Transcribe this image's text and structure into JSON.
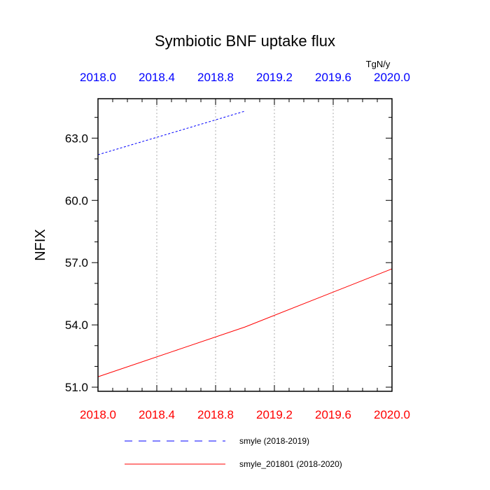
{
  "chart_data": {
    "type": "line",
    "title": "Symbiotic BNF uptake flux",
    "units": "TgN/y",
    "ylabel": "NFIX",
    "ylim": [
      50.8,
      64.9
    ],
    "yticks": [
      "51.0",
      "54.0",
      "57.0",
      "60.0",
      "63.0"
    ],
    "ytick_values": [
      51.0,
      54.0,
      57.0,
      60.0,
      63.0
    ],
    "ygrid": false,
    "xgrid": true,
    "top_axis": {
      "range": [
        2018.0,
        2020.0
      ],
      "ticks": [
        "2018.0",
        "2018.4",
        "2018.8",
        "2019.2",
        "2019.6",
        "2020.0"
      ],
      "tick_values": [
        2018.0,
        2018.4,
        2018.8,
        2019.2,
        2019.6,
        2020.0
      ],
      "color": "#0000ff"
    },
    "bottom_axis": {
      "range": [
        2018.0,
        2020.0
      ],
      "ticks": [
        "2018.0",
        "2018.4",
        "2018.8",
        "2019.2",
        "2019.6",
        "2020.0"
      ],
      "tick_values": [
        2018.0,
        2018.4,
        2018.8,
        2019.2,
        2019.6,
        2020.0
      ],
      "color": "#ff0000"
    },
    "legend_position": "bottom",
    "series": [
      {
        "name": "smyle (2018-2019)",
        "color": "#0000ff",
        "dash": "dashed",
        "axis": "top",
        "x": [
          2018.0,
          2019.0
        ],
        "y": [
          62.2,
          64.3
        ]
      },
      {
        "name": "smyle_201801 (2018-2020)",
        "color": "#ff0000",
        "dash": "solid",
        "axis": "bottom",
        "x": [
          2018.0,
          2018.5,
          2019.0,
          2019.5,
          2020.0
        ],
        "y": [
          51.5,
          52.7,
          53.9,
          55.3,
          56.7
        ]
      }
    ]
  }
}
